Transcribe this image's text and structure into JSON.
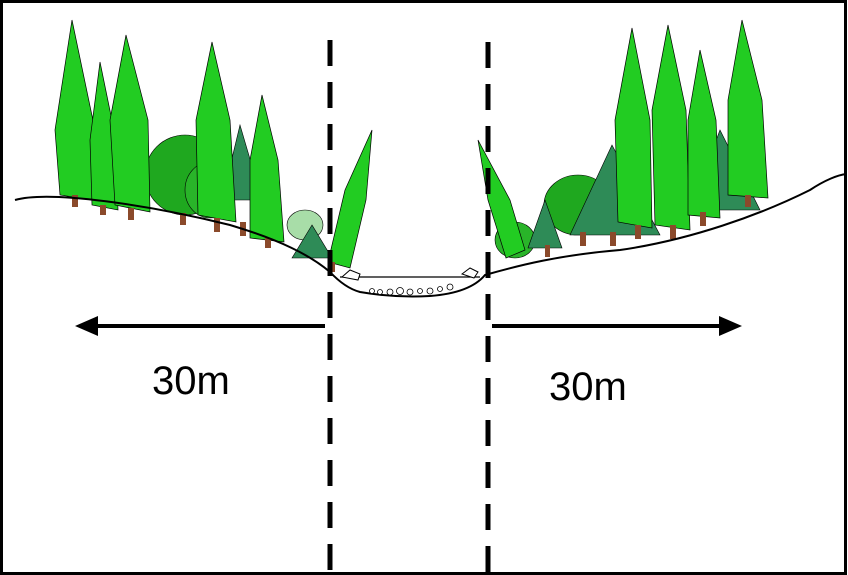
{
  "diagram": {
    "left_distance_label": "30m",
    "right_distance_label": "30m"
  },
  "colors": {
    "background": "#ffffff",
    "frame": "#000000",
    "conifer_light": "#22cc22",
    "conifer_dark": "#2e8b57",
    "broadleaf": "#1fa81f",
    "trunk": "#8b4a2b",
    "ground_line": "#000000",
    "boundary_line": "#000000",
    "arrow": "#000000"
  }
}
